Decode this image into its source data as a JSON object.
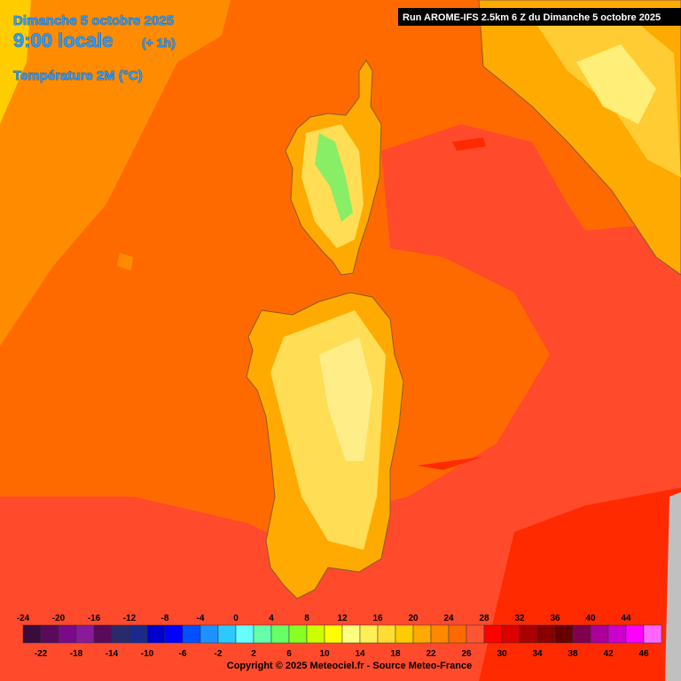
{
  "header": {
    "date": "Dimanche 5 octobre 2025",
    "time": "9:00 locale",
    "offset": "(+ 1h)",
    "variable": "Température 2M (°C)"
  },
  "run_info": "Run AROME-IFS 2.5km 6 Z du Dimanche 5 octobre 2025",
  "legend": {
    "top_labels": [
      -24,
      -20,
      -16,
      -12,
      -8,
      -4,
      0,
      4,
      8,
      12,
      16,
      20,
      24,
      28,
      32,
      36,
      40,
      44
    ],
    "bottom_labels": [
      -22,
      -18,
      -14,
      -10,
      -6,
      -2,
      2,
      6,
      10,
      14,
      18,
      22,
      26,
      30,
      34,
      38,
      42,
      46
    ],
    "colors": [
      "#3d0a3d",
      "#5a0a5a",
      "#7a0a8a",
      "#8a1a9a",
      "#5a0a5a",
      "#2a2a6a",
      "#1a2a8a",
      "#0000cc",
      "#0000ff",
      "#0050ff",
      "#1e90ff",
      "#2ec8ff",
      "#66ffff",
      "#66ffaa",
      "#66ff66",
      "#88ff22",
      "#ccff00",
      "#ffff00",
      "#ffff80",
      "#ffee55",
      "#ffdd33",
      "#ffcc00",
      "#ffaa00",
      "#ff8800",
      "#ff6a00",
      "#ff5533",
      "#ff0000",
      "#dd0000",
      "#aa0000",
      "#880000",
      "#660000",
      "#800050",
      "#aa0099",
      "#cc00cc",
      "#ff00ff",
      "#ff66ff"
    ]
  },
  "copyright": "Copyright © 2025 Meteociel.fr - Source Meteo-France"
}
